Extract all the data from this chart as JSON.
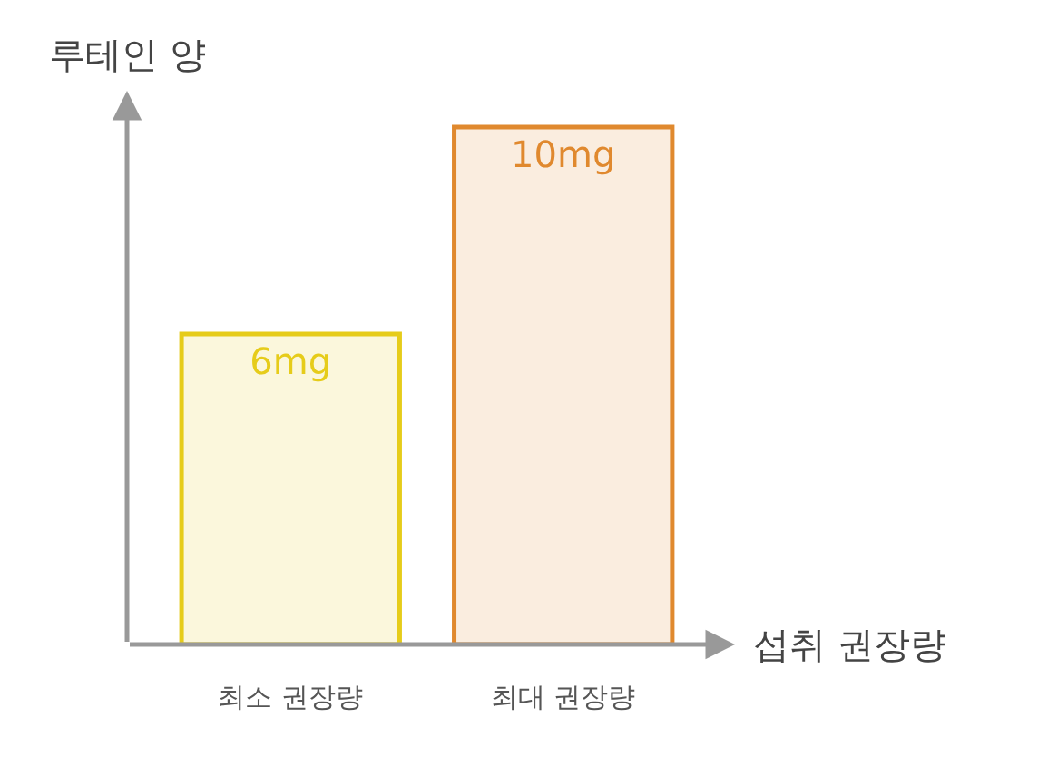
{
  "chart_data": {
    "type": "bar",
    "xlabel": "섭취 권장량",
    "ylabel": "루테인 양",
    "categories": [
      "최소 권장량",
      "최대 권장량"
    ],
    "values": [
      6,
      10
    ],
    "value_labels": [
      "6mg",
      "10mg"
    ],
    "colors": [
      "#e6cc1a",
      "#e0892e"
    ],
    "legend": false
  }
}
